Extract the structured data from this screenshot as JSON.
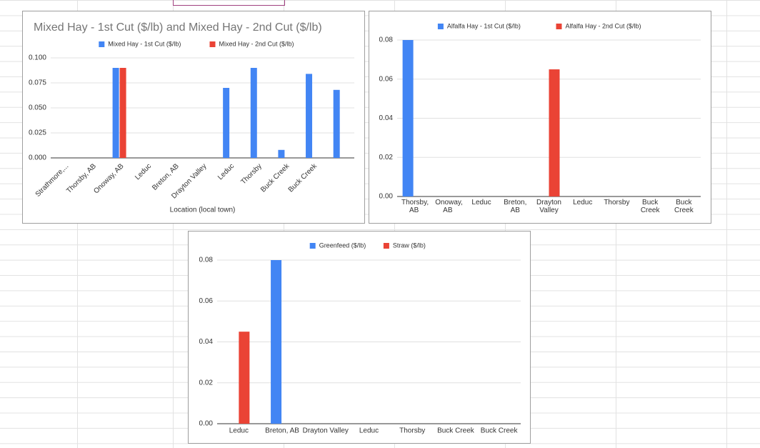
{
  "chart_data": [
    {
      "type": "bar",
      "title": "Mixed Hay - 1st Cut ($/lb)  and Mixed Hay - 2nd Cut ($/lb)",
      "x_label": "Location (local town)",
      "categories": [
        "Strathmore,...",
        "Thorsby, AB",
        "Onoway, AB",
        "Leduc",
        "Breton, AB",
        "Drayton Valley",
        "Leduc",
        "Thorsby",
        "Buck Creek",
        "Buck Creek",
        null
      ],
      "series": [
        {
          "name": "Mixed Hay - 1st Cut ($/lb)",
          "color": "#4285f4",
          "values": [
            null,
            null,
            0.09,
            null,
            null,
            null,
            0.07,
            0.09,
            0.008,
            0.084,
            0.068
          ]
        },
        {
          "name": "Mixed Hay - 2nd Cut ($/lb)",
          "color": "#ea4335",
          "values": [
            null,
            null,
            0.09,
            null,
            null,
            null,
            null,
            null,
            null,
            null,
            null
          ]
        }
      ],
      "ylim": [
        0,
        0.1
      ],
      "yticks": [
        {
          "value": 0,
          "label": "0.000"
        },
        {
          "value": 0.025,
          "label": "0.025"
        },
        {
          "value": 0.05,
          "label": "0.050"
        },
        {
          "value": 0.075,
          "label": "0.075"
        },
        {
          "value": 0.1,
          "label": "0.100"
        }
      ],
      "grid": true,
      "legend": "top"
    },
    {
      "type": "bar",
      "categories": [
        "Thorsby, AB",
        "Onoway, AB",
        "Leduc",
        "Breton, AB",
        "Drayton Valley",
        "Leduc",
        "Thorsby",
        "Buck Creek",
        "Buck Creek"
      ],
      "series": [
        {
          "name": "Alfalfa Hay - 1st Cut ($/lb)",
          "color": "#4285f4",
          "values": [
            0.08,
            null,
            null,
            null,
            null,
            null,
            null,
            null,
            null
          ]
        },
        {
          "name": "Alfalfa Hay - 2nd Cut ($/lb)",
          "color": "#ea4335",
          "values": [
            null,
            null,
            null,
            null,
            0.065,
            null,
            null,
            null,
            null
          ]
        }
      ],
      "ylim": [
        0,
        0.08
      ],
      "yticks": [
        {
          "value": 0,
          "label": "0.00"
        },
        {
          "value": 0.02,
          "label": "0.02"
        },
        {
          "value": 0.04,
          "label": "0.04"
        },
        {
          "value": 0.06,
          "label": "0.06"
        },
        {
          "value": 0.08,
          "label": "0.08"
        }
      ],
      "grid": true,
      "legend": "top"
    },
    {
      "type": "bar",
      "categories": [
        "Leduc",
        "Breton, AB",
        "Drayton Valley",
        "Leduc",
        "Thorsby",
        "Buck Creek",
        "Buck Creek"
      ],
      "series": [
        {
          "name": "Greenfeed ($/lb)",
          "color": "#4285f4",
          "values": [
            null,
            0.08,
            null,
            null,
            null,
            null,
            null
          ]
        },
        {
          "name": "Straw ($/lb)",
          "color": "#ea4335",
          "values": [
            0.045,
            null,
            null,
            null,
            null,
            null,
            null
          ]
        }
      ],
      "ylim": [
        0,
        0.08
      ],
      "yticks": [
        {
          "value": 0,
          "label": "0.00"
        },
        {
          "value": 0.02,
          "label": "0.02"
        },
        {
          "value": 0.04,
          "label": "0.04"
        },
        {
          "value": 0.06,
          "label": "0.06"
        },
        {
          "value": 0.08,
          "label": "0.08"
        }
      ],
      "grid": true,
      "legend": "top"
    }
  ]
}
